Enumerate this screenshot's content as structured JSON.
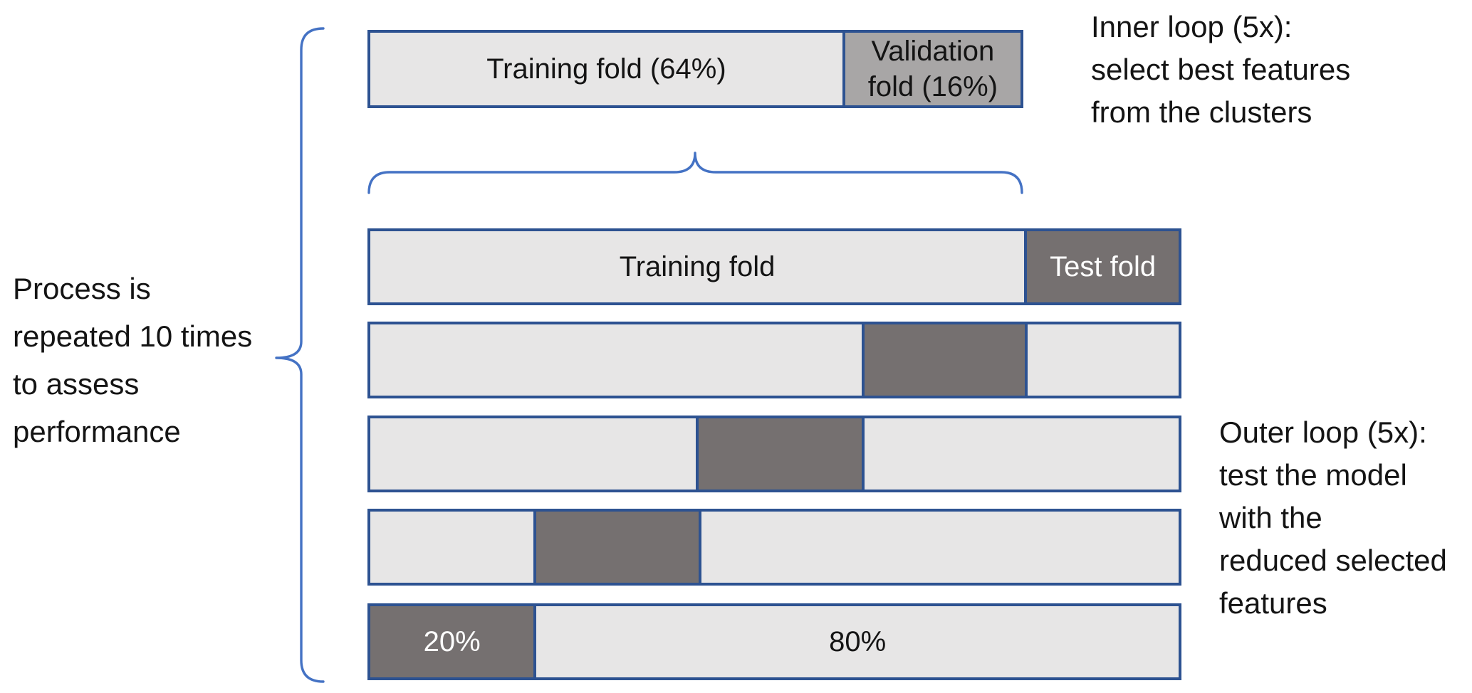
{
  "colors": {
    "light_fill": "#e7e6e6",
    "medium_fill": "#a8a6a6",
    "dark_fill": "#757070",
    "border_blue": "#2d5291",
    "brace_blue": "#4472c4",
    "text_dark": "#141414",
    "text_light": "#ffffff"
  },
  "annotations": {
    "left": {
      "lines": [
        "Process is",
        "repeated 10 times",
        "to assess",
        "performance"
      ]
    },
    "inner_loop": {
      "lines": [
        "Inner loop (5x):",
        "select best features",
        "from the clusters"
      ]
    },
    "outer_loop": {
      "lines": [
        "Outer loop (5x):",
        "test the model",
        "with the",
        "reduced selected",
        "features"
      ]
    }
  },
  "inner_bar": {
    "segments": [
      {
        "label": "Training fold (64%)",
        "tone": "light",
        "width_pct": 72.6
      },
      {
        "label": "Validation\nfold (16%)",
        "tone": "medium",
        "width_pct": 27.4
      }
    ]
  },
  "outer_bars": [
    {
      "name": "outer-fold-1",
      "segments": [
        {
          "label": "Training fold",
          "tone": "light",
          "width_pct": 80.9
        },
        {
          "label": "Test fold",
          "tone": "dark",
          "width_pct": 19.1
        }
      ]
    },
    {
      "name": "outer-fold-2",
      "segments": [
        {
          "label": "",
          "tone": "light",
          "width_pct": 60.8
        },
        {
          "label": "",
          "tone": "dark",
          "width_pct": 20.2
        },
        {
          "label": "",
          "tone": "light",
          "width_pct": 19.0
        }
      ]
    },
    {
      "name": "outer-fold-3",
      "segments": [
        {
          "label": "",
          "tone": "light",
          "width_pct": 40.3
        },
        {
          "label": "",
          "tone": "dark",
          "width_pct": 20.5
        },
        {
          "label": "",
          "tone": "light",
          "width_pct": 39.2
        }
      ]
    },
    {
      "name": "outer-fold-4",
      "segments": [
        {
          "label": "",
          "tone": "light",
          "width_pct": 20.2
        },
        {
          "label": "",
          "tone": "dark",
          "width_pct": 20.4
        },
        {
          "label": "",
          "tone": "light",
          "width_pct": 59.4
        }
      ]
    },
    {
      "name": "outer-fold-5",
      "segments": [
        {
          "label": "20%",
          "tone": "dark",
          "width_pct": 20.2
        },
        {
          "label": "80%",
          "tone": "light",
          "width_pct": 79.8
        }
      ]
    }
  ]
}
